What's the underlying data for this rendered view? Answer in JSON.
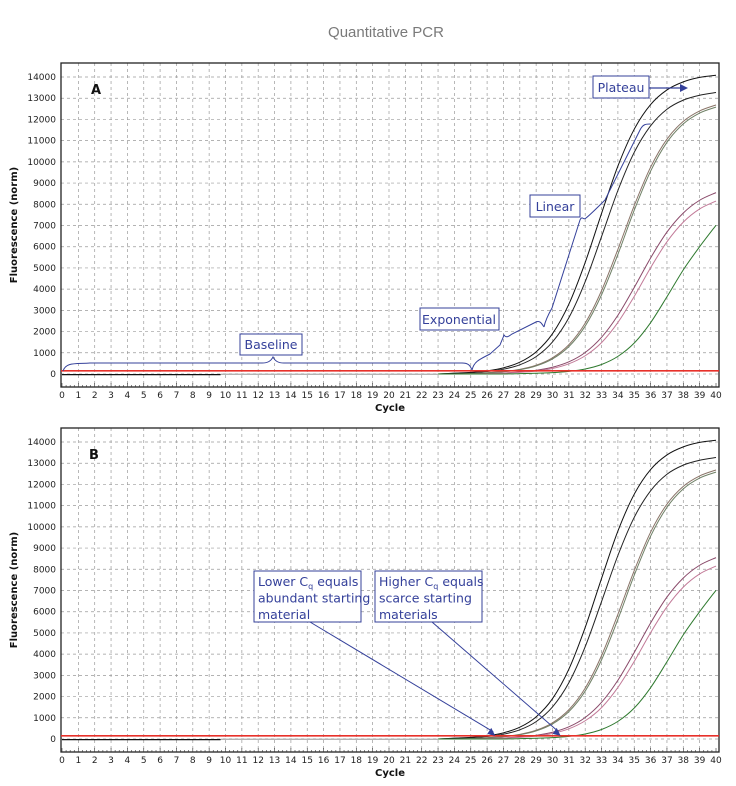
{
  "title": "Quantitative PCR",
  "chart_data": [
    {
      "type": "line",
      "panel_label": "A",
      "xlabel": "Cycle",
      "ylabel": "Fluorescence (norm)",
      "xlim": [
        0,
        40
      ],
      "ylim": [
        -600,
        14600
      ],
      "xticks": [
        0,
        1,
        2,
        3,
        4,
        5,
        6,
        7,
        8,
        9,
        10,
        11,
        12,
        13,
        14,
        15,
        16,
        17,
        18,
        19,
        20,
        21,
        22,
        23,
        24,
        25,
        26,
        27,
        28,
        29,
        30,
        31,
        32,
        33,
        34,
        35,
        36,
        37,
        38,
        39,
        40
      ],
      "yticks": [
        0,
        1000,
        2000,
        3000,
        4000,
        5000,
        6000,
        7000,
        8000,
        9000,
        10000,
        11000,
        12000,
        13000,
        14000
      ],
      "grid": true,
      "threshold": 150,
      "threshold_color": "#e8312a",
      "annotations": {
        "baseline": "Baseline",
        "exponential": "Exponential",
        "linear": "Linear",
        "plateau": "Plateau"
      }
    },
    {
      "type": "line",
      "panel_label": "B",
      "xlabel": "Cycle",
      "ylabel": "Fluorescence (norm)",
      "xlim": [
        0,
        40
      ],
      "ylim": [
        -600,
        14600
      ],
      "grid": true,
      "threshold": 150,
      "threshold_color": "#e8312a",
      "annotations": {
        "lower": [
          {
            "pre": "Lower C",
            "sub": "q",
            "post": " equals"
          },
          {
            "pre": "abundant starting",
            "sub": "",
            "post": ""
          },
          {
            "pre": "material",
            "sub": "",
            "post": ""
          }
        ],
        "lower_cq": 26.5,
        "higher": [
          {
            "pre": "Higher C",
            "sub": "q",
            "post": " equals"
          },
          {
            "pre": "scarce starting",
            "sub": "",
            "post": ""
          },
          {
            "pre": "materials",
            "sub": "",
            "post": ""
          }
        ],
        "higher_cq": 30.5
      }
    }
  ],
  "series_x": [
    23,
    24,
    25,
    26,
    27,
    28,
    29,
    30,
    31,
    32,
    33,
    34,
    35,
    36,
    37,
    38,
    39,
    40
  ],
  "series": [
    {
      "color": "#111111",
      "values": [
        0,
        40,
        78,
        150,
        290,
        555,
        1045,
        1900,
        3290,
        5260,
        7570,
        9800,
        11540,
        12700,
        13390,
        13770,
        13980,
        14080
      ]
    },
    {
      "color": "#222222",
      "values": [
        0,
        31,
        60,
        117,
        227,
        434,
        820,
        1510,
        2650,
        4350,
        6480,
        8650,
        10450,
        11700,
        12480,
        12910,
        13140,
        13270
      ]
    },
    {
      "color": "#8a7468",
      "values": [
        0,
        0,
        20,
        61,
        116,
        220,
        411,
        764,
        1380,
        2400,
        3930,
        5880,
        7940,
        9750,
        11070,
        11910,
        12400,
        12680
      ]
    },
    {
      "color": "#6f8066",
      "values": [
        0,
        0,
        18,
        55,
        105,
        200,
        380,
        710,
        1290,
        2260,
        3730,
        5640,
        7720,
        9560,
        10920,
        11790,
        12300,
        12580
      ]
    },
    {
      "color": "#8a4a6a",
      "values": [
        0,
        0,
        0,
        20,
        50,
        93,
        173,
        318,
        573,
        1015,
        1730,
        2770,
        4080,
        5470,
        6690,
        7590,
        8190,
        8550
      ]
    },
    {
      "color": "#c27a98",
      "values": [
        0,
        0,
        0,
        15,
        40,
        75,
        140,
        260,
        480,
        860,
        1480,
        2430,
        3660,
        5010,
        6230,
        7160,
        7780,
        8150
      ]
    },
    {
      "color": "#2f7a2f",
      "values": [
        0,
        0,
        0,
        0,
        0,
        15,
        35,
        64,
        124,
        237,
        448,
        830,
        1460,
        2420,
        3640,
        4910,
        6000,
        7010
      ]
    }
  ],
  "colors": {
    "annotation": "#34409a",
    "grid": "#9a9a9a"
  }
}
